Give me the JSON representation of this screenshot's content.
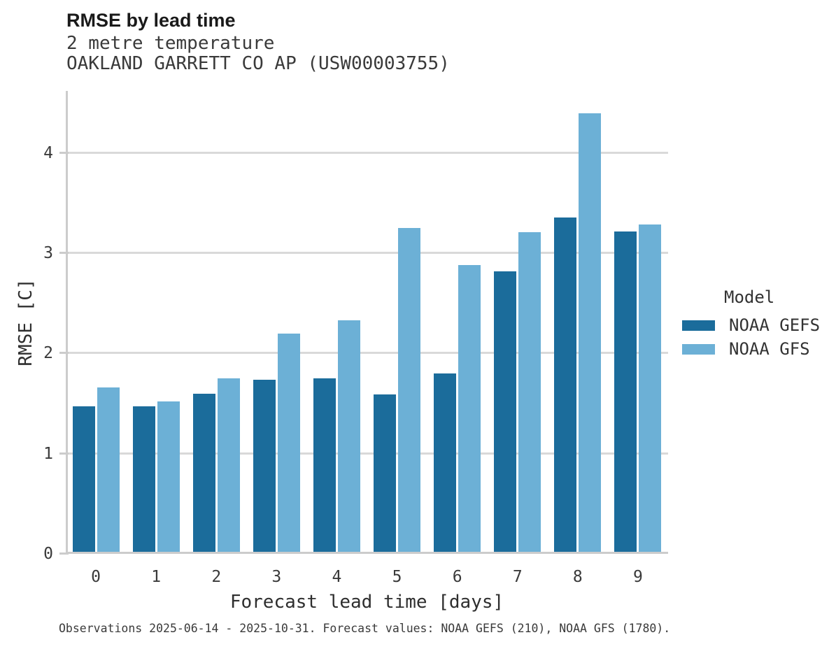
{
  "figure": {
    "title": "RMSE by lead time",
    "subtitle_lines": [
      "2 metre temperature",
      "OAKLAND GARRETT CO AP (USW00003755)"
    ],
    "footnote": "Observations 2025-06-14 - 2025-10-31. Forecast values: NOAA GEFS (210), NOAA GFS (1780)."
  },
  "chart_data": {
    "type": "bar",
    "title": "RMSE by lead time",
    "subtitle_lines": [
      "2 metre temperature",
      "OAKLAND GARRETT CO AP (USW00003755)"
    ],
    "categories": [
      "0",
      "1",
      "2",
      "3",
      "4",
      "5",
      "6",
      "7",
      "8",
      "9"
    ],
    "series": [
      {
        "name": "NOAA GEFS",
        "color": "#1b6c9b",
        "values": [
          1.47,
          1.47,
          1.6,
          1.74,
          1.75,
          1.59,
          1.8,
          2.82,
          3.36,
          3.22
        ]
      },
      {
        "name": "NOAA GFS",
        "color": "#6cb0d6",
        "values": [
          1.66,
          1.52,
          1.75,
          2.2,
          2.33,
          3.25,
          2.88,
          3.21,
          4.4,
          3.29
        ]
      }
    ],
    "xlabel": "Forecast lead time [days]",
    "ylabel": "RMSE [C]",
    "ylim": [
      0,
      4.62
    ],
    "yticks": [
      "0",
      "1",
      "2",
      "3",
      "4"
    ],
    "grid": true,
    "legend_title": "Model",
    "legend_position": "center-right",
    "colors": {
      "gridline": "#d9d9d9",
      "spine": "#cccccc",
      "background": "#ffffff"
    }
  }
}
